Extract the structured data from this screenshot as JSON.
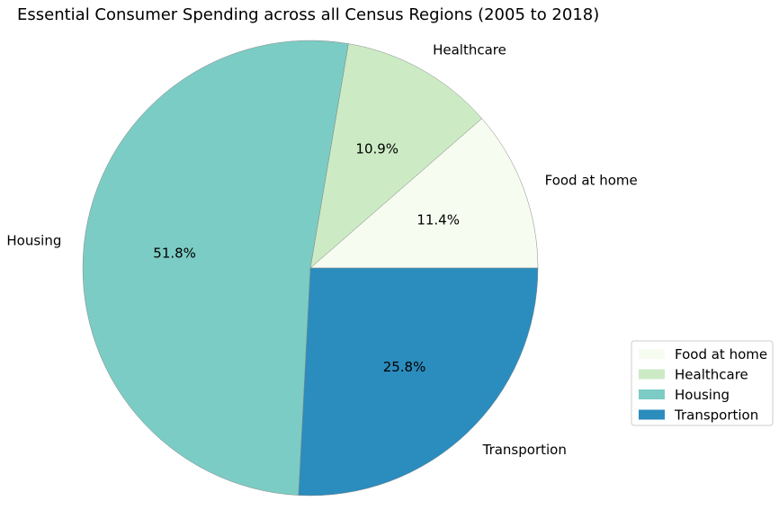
{
  "chart_data": {
    "type": "pie",
    "title": "Essential Consumer Spending across all Census Regions (2005 to 2018)",
    "categories": [
      "Food at home",
      "Healthcare",
      "Housing",
      "Transportion"
    ],
    "values": [
      11.4,
      10.9,
      51.8,
      25.8
    ],
    "value_labels": [
      "11.4%",
      "10.9%",
      "51.8%",
      "25.8%"
    ],
    "colors": [
      "#f7fcf0",
      "#ccebc5",
      "#7bccc4",
      "#2b8cbe"
    ],
    "start_angle_deg": 0,
    "direction": "counterclockwise",
    "edge_color": "#888888",
    "legend": {
      "placement": "center-right",
      "entries": [
        "Food at home",
        "Healthcare",
        "Housing",
        "Transportion"
      ]
    }
  }
}
